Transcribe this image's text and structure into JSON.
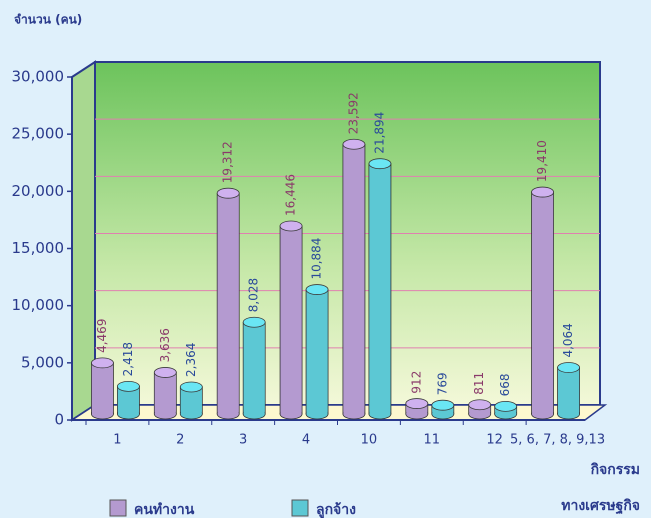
{
  "chart_data": {
    "type": "bar",
    "y_label": "จำนวน (คน)",
    "x_label": [
      "กิจกรรม",
      "ทางเศรษฐกิจ"
    ],
    "categories": [
      "1",
      "2",
      "3",
      "4",
      "10",
      "11",
      "12",
      "5, 6, 7, 8, 9,13"
    ],
    "series": [
      {
        "name": "คนทำงาน",
        "color": "#b49ad0",
        "values": [
          4469,
          3636,
          19312,
          16446,
          23592,
          912,
          811,
          19410
        ],
        "value_labels": [
          "4,469",
          "3,636",
          "19,312",
          "16,446",
          "23,592",
          "912",
          "811",
          "19,410"
        ]
      },
      {
        "name": "ลูกจ้าง",
        "color": "#5cc8d4",
        "values": [
          2418,
          2364,
          8028,
          10884,
          21894,
          769,
          668,
          4064
        ],
        "value_labels": [
          "2,418",
          "2,364",
          "8,028",
          "10,884",
          "21,894",
          "769",
          "668",
          "4,064"
        ]
      }
    ],
    "ylim": [
      0,
      30000
    ],
    "yticks": [
      0,
      {
        "value": 5000,
        "label": "5,000"
      },
      {
        "value": 10000,
        "label": "10,000"
      },
      {
        "value": 15000,
        "label": "15,000"
      },
      {
        "value": 20000,
        "label": "20,000"
      },
      {
        "value": 25000,
        "label": "25,000"
      },
      {
        "value": 30000,
        "label": "30,000"
      }
    ],
    "grid": true
  }
}
